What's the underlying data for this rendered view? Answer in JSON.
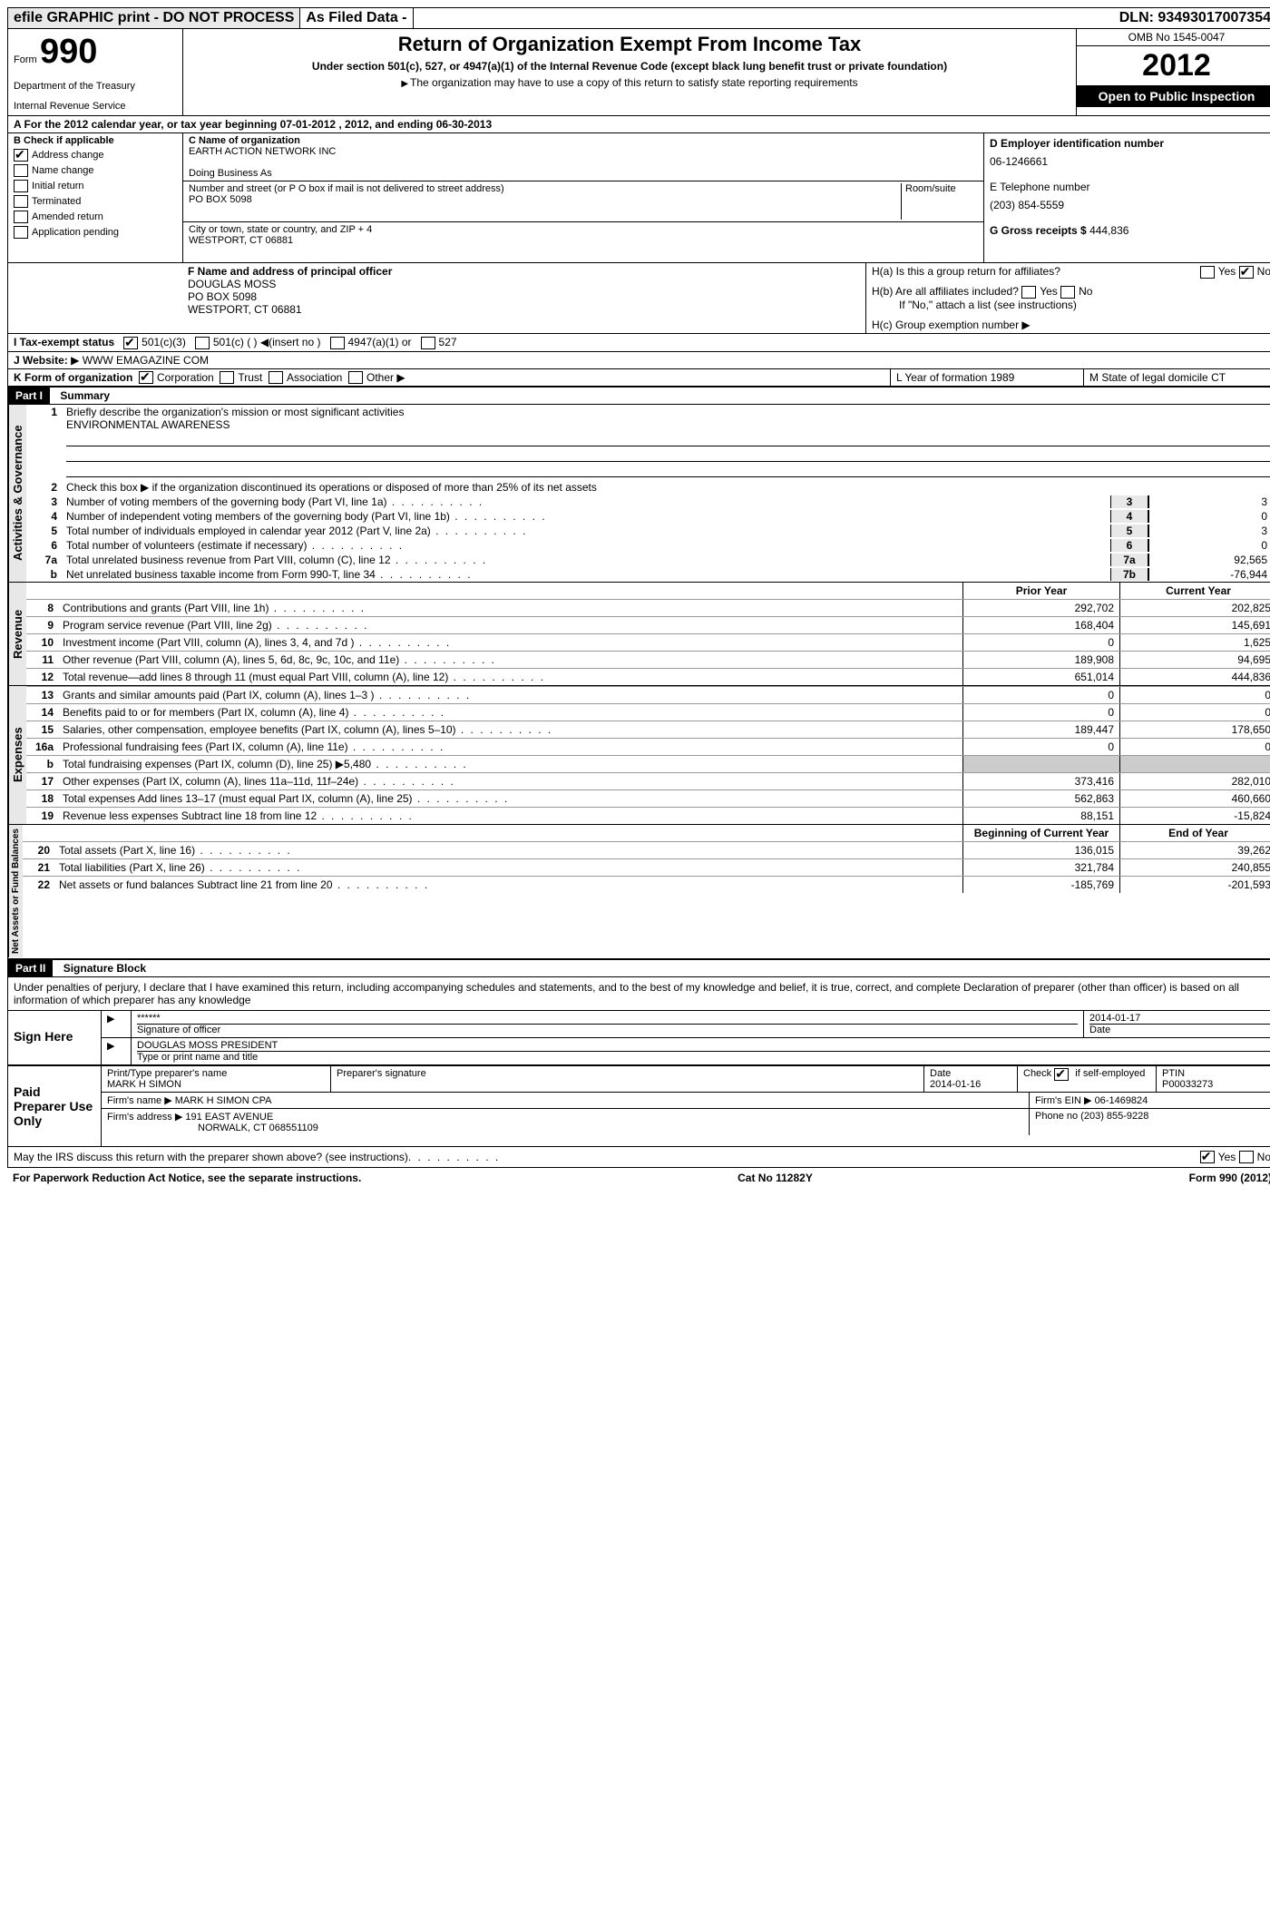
{
  "topbar": {
    "efile": "efile GRAPHIC print - DO NOT PROCESS",
    "asfiled": "As Filed Data -",
    "dln_label": "DLN:",
    "dln": "93493017007354"
  },
  "header": {
    "form_label": "Form",
    "form_number": "990",
    "dept1": "Department of the Treasury",
    "dept2": "Internal Revenue Service",
    "title1": "Return of Organization Exempt From Income Tax",
    "title2": "Under section 501(c), 527, or 4947(a)(1) of the Internal Revenue Code (except black lung benefit trust or private foundation)",
    "title3": "The organization may have to use a copy of this return to satisfy state reporting requirements",
    "omb": "OMB No 1545-0047",
    "year": "2012",
    "inspection": "Open to Public Inspection"
  },
  "sectionA": "A  For the 2012 calendar year, or tax year beginning 07-01-2012    , 2012, and ending 06-30-2013",
  "checkB": {
    "label": "B Check if applicable",
    "items": [
      "Address change",
      "Name change",
      "Initial return",
      "Terminated",
      "Amended return",
      "Application pending"
    ],
    "checked": [
      true,
      false,
      false,
      false,
      false,
      false
    ]
  },
  "org": {
    "c_label": "C Name of organization",
    "name": "EARTH ACTION NETWORK INC",
    "dba_label": "Doing Business As",
    "dba": "",
    "street_label": "Number and street (or P O  box if mail is not delivered to street address)",
    "room_label": "Room/suite",
    "street": "PO BOX 5098",
    "city_label": "City or town, state or country, and ZIP + 4",
    "city": "WESTPORT, CT  06881"
  },
  "id": {
    "d_label": "D Employer identification number",
    "ein": "06-1246661",
    "e_label": "E Telephone number",
    "phone": "(203) 854-5559",
    "g_label": "G Gross receipts $",
    "gross": "444,836"
  },
  "officer": {
    "f_label": "F  Name and address of principal officer",
    "name": "DOUGLAS MOSS",
    "addr1": "PO BOX 5098",
    "addr2": "WESTPORT, CT  06881"
  },
  "groupH": {
    "ha": "H(a)  Is this a group return for affiliates?",
    "ha_yes": "Yes",
    "ha_no": "No",
    "hb": "H(b)  Are all affiliates included?",
    "hb_note": "If \"No,\" attach a list  (see instructions)",
    "hc": "H(c)  Group exemption number"
  },
  "taxexempt": {
    "i_label": "I   Tax-exempt status",
    "c3": "501(c)(3)",
    "c": "501(c) (  )",
    "insert": "(insert no )",
    "a1": "4947(a)(1) or",
    "527": "527"
  },
  "website": {
    "j_label": "J   Website:",
    "url": "WWW EMAGAZINE COM"
  },
  "formK": {
    "k_label": "K Form of organization",
    "opts": [
      "Corporation",
      "Trust",
      "Association",
      "Other"
    ],
    "l_label": "L Year of formation  1989",
    "m_label": "M State of legal domicile  CT"
  },
  "part1": {
    "header": "Part I",
    "title": "Summary"
  },
  "sections": {
    "activities": "Activities & Governance",
    "revenue": "Revenue",
    "expenses": "Expenses",
    "netassets": "Net Assets or Fund Balances"
  },
  "lines_top": {
    "l1": "Briefly describe the organization's mission or most significant activities",
    "l1_val": "ENVIRONMENTAL AWARENESS",
    "l2": "Check this box ▶    if the organization discontinued its operations or disposed of more than 25% of its net assets"
  },
  "gov_lines": [
    {
      "n": "3",
      "t": "Number of voting members of the governing body (Part VI, line 1a)",
      "box": "3",
      "v": "3"
    },
    {
      "n": "4",
      "t": "Number of independent voting members of the governing body (Part VI, line 1b)",
      "box": "4",
      "v": "0"
    },
    {
      "n": "5",
      "t": "Total number of individuals employed in calendar year 2012 (Part V, line 2a)",
      "box": "5",
      "v": "3"
    },
    {
      "n": "6",
      "t": "Total number of volunteers (estimate if necessary)",
      "box": "6",
      "v": "0"
    },
    {
      "n": "7a",
      "t": "Total unrelated business revenue from Part VIII, column (C), line 12",
      "box": "7a",
      "v": "92,565"
    },
    {
      "n": "b",
      "t": "Net unrelated business taxable income from Form 990-T, line 34",
      "box": "7b",
      "v": "-76,944"
    }
  ],
  "col_headers": {
    "prior": "Prior Year",
    "current": "Current Year",
    "bcy": "Beginning of Current Year",
    "eoy": "End of Year"
  },
  "rev_lines": [
    {
      "n": "8",
      "t": "Contributions and grants (Part VIII, line 1h)",
      "p": "292,702",
      "c": "202,825"
    },
    {
      "n": "9",
      "t": "Program service revenue (Part VIII, line 2g)",
      "p": "168,404",
      "c": "145,691"
    },
    {
      "n": "10",
      "t": "Investment income (Part VIII, column (A), lines 3, 4, and 7d )",
      "p": "0",
      "c": "1,625"
    },
    {
      "n": "11",
      "t": "Other revenue (Part VIII, column (A), lines 5, 6d, 8c, 9c, 10c, and 11e)",
      "p": "189,908",
      "c": "94,695"
    },
    {
      "n": "12",
      "t": "Total revenue—add lines 8 through 11 (must equal Part VIII, column (A), line 12)",
      "p": "651,014",
      "c": "444,836"
    }
  ],
  "exp_lines": [
    {
      "n": "13",
      "t": "Grants and similar amounts paid (Part IX, column (A), lines 1–3 )",
      "p": "0",
      "c": "0"
    },
    {
      "n": "14",
      "t": "Benefits paid to or for members (Part IX, column (A), line 4)",
      "p": "0",
      "c": "0"
    },
    {
      "n": "15",
      "t": "Salaries, other compensation, employee benefits (Part IX, column (A), lines 5–10)",
      "p": "189,447",
      "c": "178,650"
    },
    {
      "n": "16a",
      "t": "Professional fundraising fees (Part IX, column (A), line 11e)",
      "p": "0",
      "c": "0"
    },
    {
      "n": "b",
      "t": "Total fundraising expenses (Part IX, column (D), line 25)  ▶5,480",
      "p": "",
      "c": ""
    },
    {
      "n": "17",
      "t": "Other expenses (Part IX, column (A), lines 11a–11d, 11f–24e)",
      "p": "373,416",
      "c": "282,010"
    },
    {
      "n": "18",
      "t": "Total expenses  Add lines 13–17 (must equal Part IX, column (A), line 25)",
      "p": "562,863",
      "c": "460,660"
    },
    {
      "n": "19",
      "t": "Revenue less expenses  Subtract line 18 from line 12",
      "p": "88,151",
      "c": "-15,824"
    }
  ],
  "net_lines": [
    {
      "n": "20",
      "t": "Total assets (Part X, line 16)",
      "p": "136,015",
      "c": "39,262"
    },
    {
      "n": "21",
      "t": "Total liabilities (Part X, line 26)",
      "p": "321,784",
      "c": "240,855"
    },
    {
      "n": "22",
      "t": "Net assets or fund balances  Subtract line 21 from line 20",
      "p": "-185,769",
      "c": "-201,593"
    }
  ],
  "part2": {
    "header": "Part II",
    "title": "Signature Block"
  },
  "perjury": "Under penalties of perjury, I declare that I have examined this return, including accompanying schedules and statements, and to the best of my knowledge and belief, it is true, correct, and complete  Declaration of preparer (other than officer) is based on all information of which preparer has any knowledge",
  "sign": {
    "here": "Sign Here",
    "stars": "******",
    "sig_officer": "Signature of officer",
    "date_label": "Date",
    "date": "2014-01-17",
    "name_title": "DOUGLAS MOSS PRESIDENT",
    "type_label": "Type or print name and title"
  },
  "preparer": {
    "label": "Paid Preparer Use Only",
    "name_label": "Print/Type preparer's name",
    "name": "MARK H SIMON",
    "sig_label": "Preparer's signature",
    "date_label": "Date",
    "date": "2014-01-16",
    "check_label": "Check      if self-employed",
    "ptin_label": "PTIN",
    "ptin": "P00033273",
    "firm_name_label": "Firm's name    ▶",
    "firm_name": "MARK H SIMON CPA",
    "firm_ein_label": "Firm's EIN ▶",
    "firm_ein": "06-1469824",
    "firm_addr_label": "Firm's address ▶",
    "firm_addr1": "191 EAST AVENUE",
    "firm_addr2": "NORWALK, CT  068551109",
    "phone_label": "Phone no",
    "phone": "(203) 855-9228"
  },
  "discuss": {
    "text": "May the IRS discuss this return with the preparer shown above? (see instructions)",
    "yes": "Yes",
    "no": "No"
  },
  "footer": {
    "paperwork": "For Paperwork Reduction Act Notice, see the separate instructions.",
    "cat": "Cat No 11282Y",
    "form": "Form 990 (2012)"
  }
}
